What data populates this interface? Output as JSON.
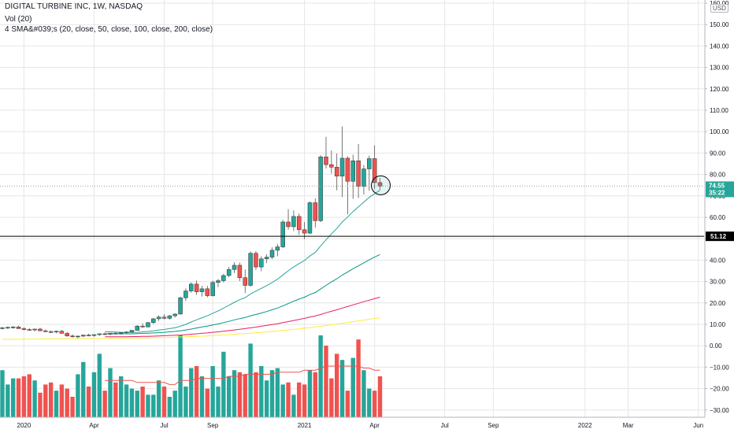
{
  "legend": {
    "symbol": "DIGITAL TURBINE INC, 1W, NASDAQ",
    "volume": "Vol (20)",
    "sma": "4 SMA&#039;s (20, close, 50, close, 100, close, 200, close)"
  },
  "currency_badge": "USD",
  "colors": {
    "up": "#26a69a",
    "down": "#ef5350",
    "sma20": "#26a69a",
    "sma50": "#009688",
    "sma100": "#e91e63",
    "sma200": "#ffeb3b",
    "vol_ma": "#ef5350",
    "grid": "#e6e6e6",
    "hline": "#000000"
  },
  "chart_data": {
    "type": "candlestick",
    "y_ticks": [
      "160.00",
      "150.00",
      "140.00",
      "130.00",
      "120.00",
      "110.00",
      "100.00",
      "90.00",
      "80.00",
      "70.00",
      "60.00",
      "50.00",
      "40.00",
      "30.00",
      "20.00",
      "10.00",
      "0.00",
      "−10.00",
      "−20.00",
      "−30.00"
    ],
    "y_range": [
      -32,
      160
    ],
    "x_ticks": [
      {
        "label": "2020",
        "week": 4
      },
      {
        "label": "Apr",
        "week": 17
      },
      {
        "label": "Jul",
        "week": 30
      },
      {
        "label": "Sep",
        "week": 39
      },
      {
        "label": "2021",
        "week": 56
      },
      {
        "label": "Apr",
        "week": 69
      },
      {
        "label": "Jul",
        "week": 82
      },
      {
        "label": "Sep",
        "week": 91
      },
      {
        "label": "2022",
        "week": 108
      },
      {
        "label": "Mar",
        "week": 116
      },
      {
        "label": "Jun",
        "week": 129
      }
    ],
    "current_price": {
      "label": "74.55",
      "countdown": "35:22",
      "value": 74.55
    },
    "horizontal_line": {
      "label": "51.12",
      "value": 51.12
    },
    "candles": [
      [
        8.2,
        8.8,
        7.6,
        8.4
      ],
      [
        8.4,
        9.0,
        7.8,
        8.6
      ],
      [
        8.6,
        9.2,
        8.0,
        8.8
      ],
      [
        8.8,
        9.4,
        8.2,
        8.0
      ],
      [
        8.0,
        8.6,
        7.2,
        7.6
      ],
      [
        7.6,
        8.2,
        7.0,
        7.4
      ],
      [
        7.4,
        8.0,
        6.8,
        7.8
      ],
      [
        7.8,
        8.4,
        7.2,
        7.0
      ],
      [
        7.0,
        7.6,
        6.4,
        6.6
      ],
      [
        6.6,
        7.2,
        6.0,
        6.4
      ],
      [
        6.4,
        7.0,
        5.8,
        6.8
      ],
      [
        6.8,
        7.4,
        6.2,
        5.8
      ],
      [
        5.8,
        6.4,
        4.2,
        4.6
      ],
      [
        4.6,
        5.2,
        3.8,
        4.2
      ],
      [
        4.2,
        4.8,
        3.6,
        4.5
      ],
      [
        4.5,
        5.2,
        4.0,
        5.0
      ],
      [
        5.0,
        5.6,
        4.4,
        4.8
      ],
      [
        4.8,
        5.4,
        4.2,
        5.2
      ],
      [
        5.2,
        5.8,
        4.6,
        5.6
      ],
      [
        5.6,
        6.2,
        5.0,
        5.4
      ],
      [
        5.4,
        6.0,
        4.8,
        5.9
      ],
      [
        5.9,
        6.4,
        5.2,
        5.7
      ],
      [
        5.7,
        6.2,
        5.2,
        6.1
      ],
      [
        6.1,
        6.8,
        5.6,
        6.4
      ],
      [
        6.4,
        7.4,
        6.0,
        7.2
      ],
      [
        7.2,
        9.6,
        7.0,
        9.2
      ],
      [
        9.2,
        10.4,
        8.4,
        8.8
      ],
      [
        8.8,
        11.2,
        8.6,
        10.8
      ],
      [
        10.8,
        13.0,
        10.2,
        12.6
      ],
      [
        12.6,
        14.2,
        11.6,
        13.4
      ],
      [
        13.4,
        14.8,
        12.4,
        12.8
      ],
      [
        12.8,
        14.4,
        12.2,
        14.0
      ],
      [
        14.0,
        15.2,
        13.2,
        14.8
      ],
      [
        14.8,
        23.0,
        14.6,
        22.4
      ],
      [
        22.4,
        26.8,
        21.0,
        25.6
      ],
      [
        25.6,
        29.6,
        24.8,
        28.8
      ],
      [
        28.8,
        30.4,
        23.8,
        25.2
      ],
      [
        25.2,
        28.0,
        23.0,
        26.6
      ],
      [
        26.6,
        28.0,
        22.6,
        23.4
      ],
      [
        23.4,
        30.4,
        23.0,
        29.6
      ],
      [
        29.6,
        31.2,
        27.4,
        30.4
      ],
      [
        30.4,
        33.6,
        29.6,
        32.8
      ],
      [
        32.8,
        36.8,
        32.0,
        35.6
      ],
      [
        35.6,
        39.0,
        34.0,
        37.6
      ],
      [
        37.6,
        38.8,
        30.2,
        31.8
      ],
      [
        31.8,
        35.6,
        24.6,
        28.2
      ],
      [
        28.2,
        44.0,
        27.6,
        43.2
      ],
      [
        43.2,
        44.2,
        35.4,
        36.8
      ],
      [
        36.8,
        41.8,
        34.8,
        40.6
      ],
      [
        40.6,
        42.8,
        38.6,
        41.4
      ],
      [
        41.4,
        46.0,
        40.4,
        44.6
      ],
      [
        44.6,
        47.6,
        41.8,
        46.2
      ],
      [
        46.2,
        58.8,
        45.6,
        57.8
      ],
      [
        57.8,
        63.8,
        54.2,
        55.6
      ],
      [
        55.6,
        63.2,
        53.6,
        60.4
      ],
      [
        60.4,
        61.8,
        51.8,
        54.2
      ],
      [
        54.2,
        57.8,
        49.8,
        52.6
      ],
      [
        52.6,
        67.4,
        52.2,
        66.8
      ],
      [
        66.8,
        68.8,
        55.2,
        58.4
      ],
      [
        58.4,
        89.0,
        57.8,
        88.2
      ],
      [
        88.2,
        97.6,
        82.8,
        84.6
      ],
      [
        84.6,
        91.2,
        80.4,
        83.4
      ],
      [
        83.4,
        89.8,
        72.6,
        79.2
      ],
      [
        79.2,
        102.4,
        69.4,
        87.6
      ],
      [
        87.6,
        88.4,
        61.4,
        76.8
      ],
      [
        76.8,
        89.2,
        68.6,
        86.4
      ],
      [
        86.4,
        94.2,
        69.0,
        74.4
      ],
      [
        74.4,
        84.4,
        70.6,
        82.6
      ],
      [
        82.6,
        88.8,
        72.4,
        87.4
      ],
      [
        87.4,
        93.6,
        73.2,
        76.2
      ],
      [
        76.2,
        78.4,
        72.8,
        74.55
      ]
    ],
    "volume": [
      23,
      16,
      19,
      19,
      20,
      21,
      18,
      12,
      16,
      17,
      13,
      16,
      14,
      10,
      21,
      27,
      15,
      22,
      31,
      13,
      24,
      17,
      20,
      16,
      14,
      13,
      15,
      11,
      11,
      18,
      15,
      10,
      13,
      40,
      15,
      24,
      25,
      20,
      14,
      25,
      15,
      32,
      20,
      23,
      22,
      21,
      36,
      22,
      25,
      18,
      23,
      24,
      16,
      17,
      11,
      17,
      16,
      23,
      22,
      40,
      35,
      19,
      31,
      28,
      13,
      29,
      38,
      23,
      14,
      13,
      20
    ],
    "sma20": [
      null,
      null,
      null,
      null,
      null,
      null,
      null,
      null,
      null,
      null,
      null,
      null,
      null,
      null,
      null,
      null,
      null,
      null,
      null,
      6.6,
      6.5,
      6.4,
      6.3,
      6.2,
      6.2,
      6.3,
      6.5,
      6.7,
      7.0,
      7.3,
      7.6,
      8.0,
      8.4,
      9.1,
      10.0,
      11.1,
      12.1,
      13.1,
      14.0,
      15.2,
      16.3,
      17.6,
      18.9,
      20.3,
      21.5,
      22.5,
      24.2,
      25.5,
      26.8,
      28.1,
      29.5,
      31.1,
      33.1,
      35.0,
      36.8,
      38.4,
      39.8,
      41.9,
      43.6,
      46.6,
      49.5,
      52.2,
      54.8,
      57.8,
      60.1,
      62.7,
      64.9,
      67.1,
      69.3,
      71.0,
      72.6
    ],
    "sma50": [
      null,
      null,
      null,
      null,
      null,
      null,
      null,
      null,
      null,
      null,
      null,
      null,
      null,
      null,
      null,
      null,
      null,
      null,
      null,
      5.6,
      5.6,
      5.6,
      5.6,
      5.6,
      5.6,
      5.7,
      5.8,
      5.9,
      6.0,
      6.1,
      6.3,
      6.5,
      6.7,
      7.0,
      7.4,
      7.8,
      8.3,
      8.8,
      9.2,
      9.7,
      10.2,
      10.8,
      11.4,
      12.1,
      12.7,
      13.2,
      14.0,
      14.6,
      15.3,
      16.0,
      16.8,
      17.6,
      18.6,
      19.7,
      20.8,
      21.8,
      22.7,
      23.9,
      24.9,
      26.5,
      28.2,
      29.8,
      31.3,
      33.0,
      34.4,
      36.0,
      37.3,
      38.7,
      40.1,
      41.4,
      42.6
    ],
    "sma100": [
      null,
      null,
      null,
      null,
      null,
      null,
      null,
      null,
      null,
      null,
      null,
      null,
      null,
      null,
      null,
      null,
      null,
      null,
      null,
      4.2,
      4.2,
      4.2,
      4.2,
      4.2,
      4.3,
      4.3,
      4.4,
      4.4,
      4.5,
      4.6,
      4.7,
      4.8,
      4.9,
      5.0,
      5.2,
      5.4,
      5.6,
      5.8,
      6.0,
      6.3,
      6.5,
      6.8,
      7.1,
      7.4,
      7.7,
      8.0,
      8.4,
      8.7,
      9.1,
      9.5,
      9.9,
      10.3,
      10.8,
      11.3,
      11.8,
      12.3,
      12.8,
      13.4,
      13.9,
      14.6,
      15.4,
      16.1,
      16.8,
      17.6,
      18.3,
      19.1,
      19.8,
      20.6,
      21.3,
      22.0,
      22.7
    ],
    "sma200": [
      3.0,
      3.0,
      3.0,
      3.0,
      3.1,
      3.1,
      3.1,
      3.1,
      3.2,
      3.2,
      3.2,
      3.2,
      3.2,
      3.3,
      3.3,
      3.3,
      3.3,
      3.4,
      3.4,
      3.4,
      3.5,
      3.5,
      3.5,
      3.6,
      3.6,
      3.6,
      3.7,
      3.7,
      3.8,
      3.8,
      3.9,
      3.9,
      4.0,
      4.1,
      4.2,
      4.3,
      4.4,
      4.5,
      4.6,
      4.8,
      4.9,
      5.1,
      5.2,
      5.4,
      5.6,
      5.7,
      5.9,
      6.1,
      6.3,
      6.5,
      6.7,
      6.9,
      7.2,
      7.4,
      7.7,
      7.9,
      8.2,
      8.5,
      8.8,
      9.1,
      9.5,
      9.8,
      10.2,
      10.5,
      10.9,
      11.3,
      11.6,
      12.0,
      12.4,
      12.8,
      13.1
    ],
    "vol_ma": [
      null,
      null,
      null,
      null,
      null,
      null,
      null,
      null,
      null,
      null,
      null,
      null,
      null,
      null,
      null,
      null,
      null,
      null,
      null,
      18,
      18,
      18,
      18,
      18,
      18,
      17,
      17,
      17,
      17,
      17,
      17,
      16,
      16,
      18,
      18,
      18,
      19,
      19,
      19,
      19,
      19,
      19,
      20,
      20,
      20,
      21,
      21,
      21,
      21,
      21,
      21,
      22,
      22,
      22,
      22,
      22,
      23,
      23,
      23,
      24,
      25,
      25,
      25,
      25,
      25,
      25,
      25,
      24,
      24,
      23,
      23
    ]
  }
}
